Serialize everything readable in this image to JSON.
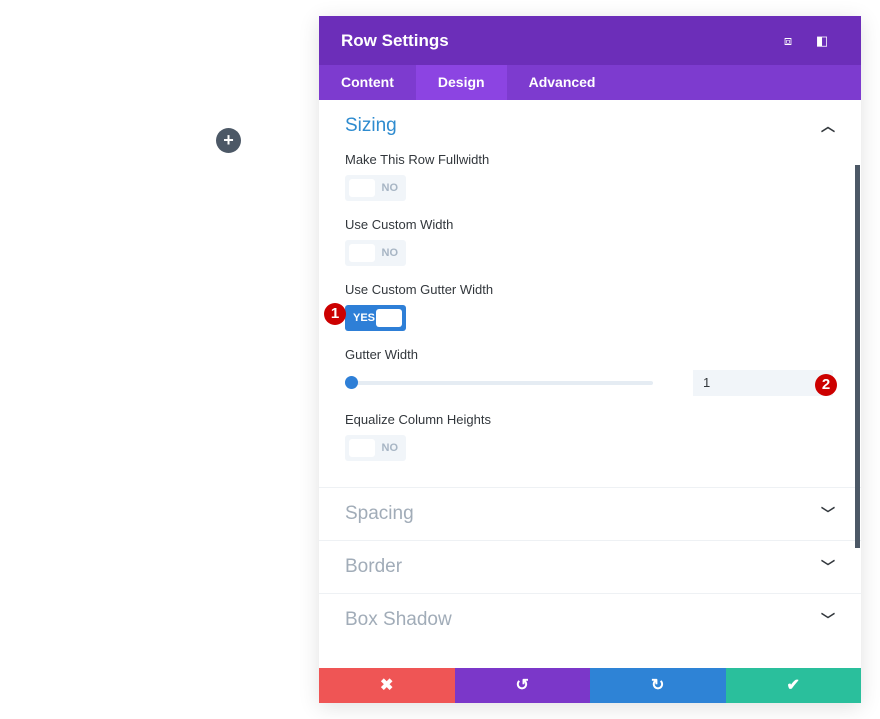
{
  "page": {
    "add_icon": "+"
  },
  "modal": {
    "title": "Row Settings",
    "icons": [
      "fullscreen-icon",
      "split-view-icon"
    ],
    "tabs": [
      {
        "label": "Content"
      },
      {
        "label": "Design"
      },
      {
        "label": "Advanced"
      }
    ],
    "active_tab": "Design",
    "sizing": {
      "title": "Sizing",
      "fullwidth": {
        "label": "Make This Row Fullwidth",
        "value": "NO"
      },
      "custom_width": {
        "label": "Use Custom Width",
        "value": "NO"
      },
      "gutter_toggle": {
        "label": "Use Custom Gutter Width",
        "value": "YES"
      },
      "gutter_width": {
        "label": "Gutter Width",
        "value": "1",
        "slider_fraction": 0
      },
      "equalize": {
        "label": "Equalize Column Heights",
        "value": "NO"
      }
    },
    "sections": [
      {
        "title": "Spacing"
      },
      {
        "title": "Border"
      },
      {
        "title": "Box Shadow"
      }
    ],
    "footer": {
      "cancel": "✖",
      "undo": "↺",
      "redo": "↻",
      "save": "✔",
      "colors": [
        "#ef5555",
        "#7b37c9",
        "#2e83d6",
        "#2abf9c"
      ]
    }
  },
  "annotations": {
    "one": "1",
    "two": "2"
  }
}
